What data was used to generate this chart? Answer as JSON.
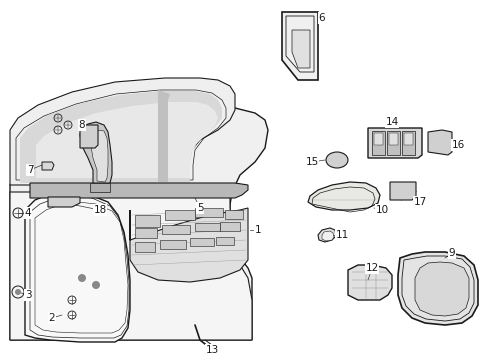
{
  "bg_color": "#ffffff",
  "line_color": "#1a1a1a",
  "gray_fill": "#e8e8e8",
  "fig_width": 4.9,
  "fig_height": 3.6,
  "dpi": 100
}
